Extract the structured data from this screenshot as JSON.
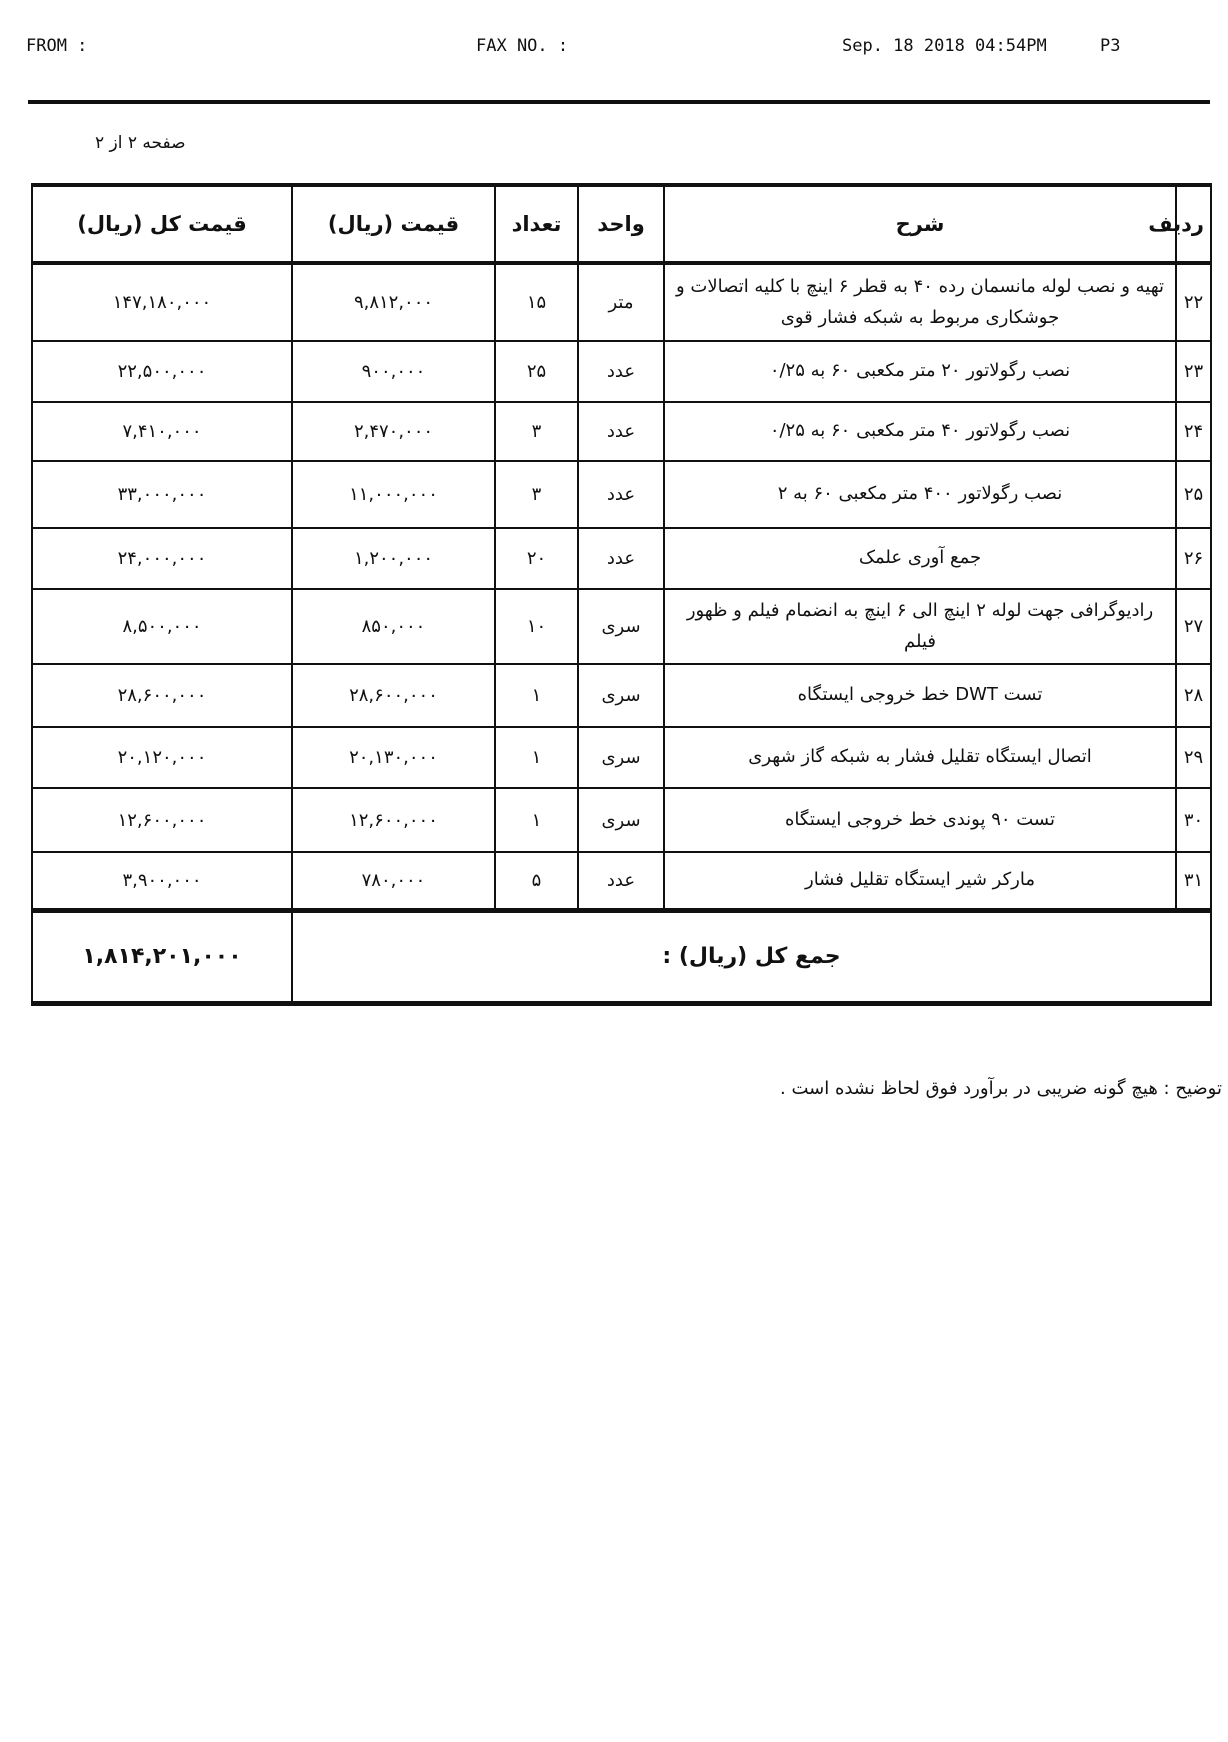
{
  "fax_header": {
    "from": "FROM :",
    "fax_no": "FAX NO. :",
    "date": "Sep. 18 2018 04:54PM",
    "page": "P3"
  },
  "page_label": "صفحه ۲ از ۲",
  "table": {
    "headers": [
      "ردیف",
      "شرح",
      "واحد",
      "تعداد",
      "قیمت (ریال)",
      "قیمت کل (ریال)"
    ],
    "rows": [
      [
        "۲۲",
        "تهیه و نصب لوله مانسمان رده ۴۰ به قطر ۶ اینچ با کلیه اتصالات و جوشکاری مربوط به شبکه فشار قوی",
        "متر",
        "۱۵",
        "۹,۸۱۲,۰۰۰",
        "۱۴۷,۱۸۰,۰۰۰"
      ],
      [
        "۲۳",
        "نصب رگولاتور ۲۰ متر مکعبی ۶۰ به ۰/۲۵",
        "عدد",
        "۲۵",
        "۹۰۰,۰۰۰",
        "۲۲,۵۰۰,۰۰۰"
      ],
      [
        "۲۴",
        "نصب رگولاتور ۴۰ متر مکعبی ۶۰ به ۰/۲۵",
        "عدد",
        "۳",
        "۲,۴۷۰,۰۰۰",
        "۷,۴۱۰,۰۰۰"
      ],
      [
        "۲۵",
        "نصب رگولاتور ۴۰۰ متر مکعبی ۶۰ به ۲",
        "عدد",
        "۳",
        "۱۱,۰۰۰,۰۰۰",
        "۳۳,۰۰۰,۰۰۰"
      ],
      [
        "۲۶",
        "جمع آوری علمک",
        "عدد",
        "۲۰",
        "۱,۲۰۰,۰۰۰",
        "۲۴,۰۰۰,۰۰۰"
      ],
      [
        "۲۷",
        "رادیوگرافی جهت لوله ۲ اینچ الی ۶ اینچ به انضمام فیلم و ظهور فیلم",
        "سری",
        "۱۰",
        "۸۵۰,۰۰۰",
        "۸,۵۰۰,۰۰۰"
      ],
      [
        "۲۸",
        "تست DWT خط خروجی ایستگاه",
        "سری",
        "۱",
        "۲۸,۶۰۰,۰۰۰",
        "۲۸,۶۰۰,۰۰۰"
      ],
      [
        "۲۹",
        "اتصال ایستگاه تقلیل فشار به شبکه گاز شهری",
        "سری",
        "۱",
        "۲۰,۱۳۰,۰۰۰",
        "۲۰,۱۲۰,۰۰۰"
      ],
      [
        "۳۰",
        "تست ۹۰ پوندی خط خروجی ایستگاه",
        "سری",
        "۱",
        "۱۲,۶۰۰,۰۰۰",
        "۱۲,۶۰۰,۰۰۰"
      ],
      [
        "۳۱",
        "مارکر شیر ایستگاه تقلیل فشار",
        "عدد",
        "۵",
        "۷۸۰,۰۰۰",
        "۳,۹۰۰,۰۰۰"
      ]
    ],
    "total_label": "جمع کل (ریال) :",
    "total_value": "۱,۸۱۴,۲۰۱,۰۰۰"
  },
  "footnote": "توضیح : هیچ گونه ضریبی در برآورد فوق لحاظ نشده است ."
}
